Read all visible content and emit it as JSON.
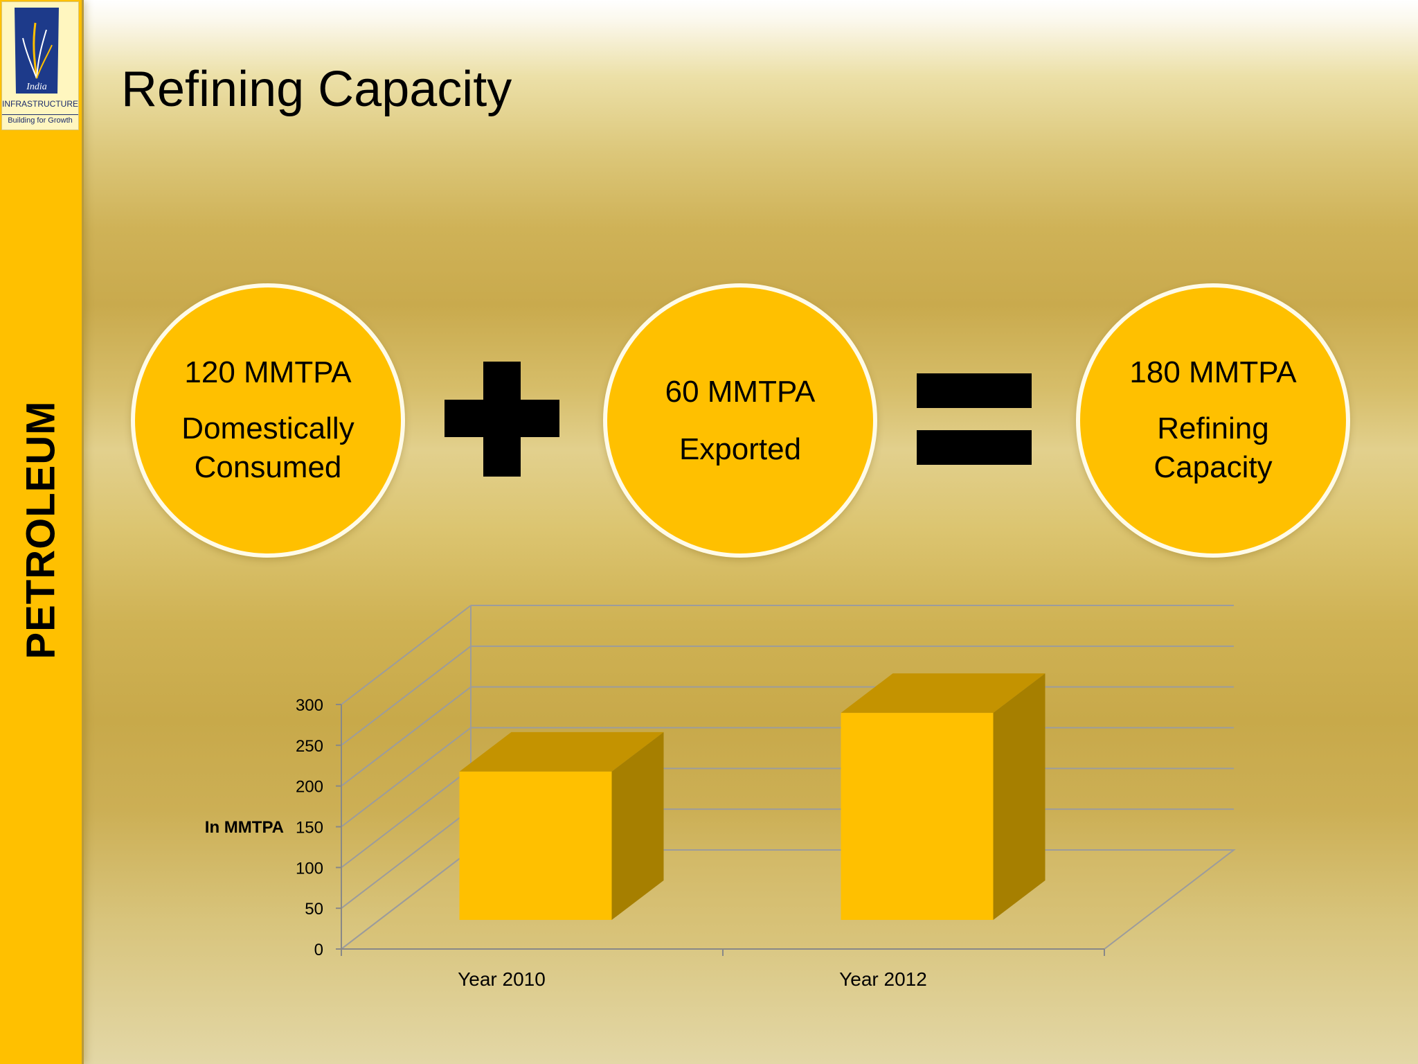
{
  "sidebar": {
    "logo": {
      "brand": "India",
      "org_line1": "INFRASTRUCTURE",
      "org_line2": "Building for Growth",
      "icon": "india-infrastructure-logo"
    },
    "section_label": "PETROLEUM"
  },
  "title": "Refining Capacity",
  "equation": {
    "terms": [
      {
        "value": "120 MMTPA",
        "desc_lines": [
          "Domestically",
          "Consumed"
        ]
      },
      {
        "value": "60 MMTPA",
        "desc_lines": [
          "Exported"
        ]
      },
      {
        "value": "180 MMTPA",
        "desc_lines": [
          "Refining",
          "Capacity"
        ]
      }
    ],
    "operators": [
      "plus-icon",
      "equals-icon"
    ]
  },
  "colors": {
    "accent": "#ffc000",
    "bar_top": "#c49300",
    "bar_side": "#a67f00"
  },
  "chart_data": {
    "type": "bar",
    "style": "3d",
    "categories": [
      "Year 2010",
      "Year 2012"
    ],
    "values": [
      182,
      254
    ],
    "ylabel": "In MMTPA",
    "ylim": [
      0,
      300
    ],
    "yticks": [
      0,
      50,
      100,
      150,
      200,
      250,
      300
    ],
    "grid": true,
    "legend": "none"
  }
}
